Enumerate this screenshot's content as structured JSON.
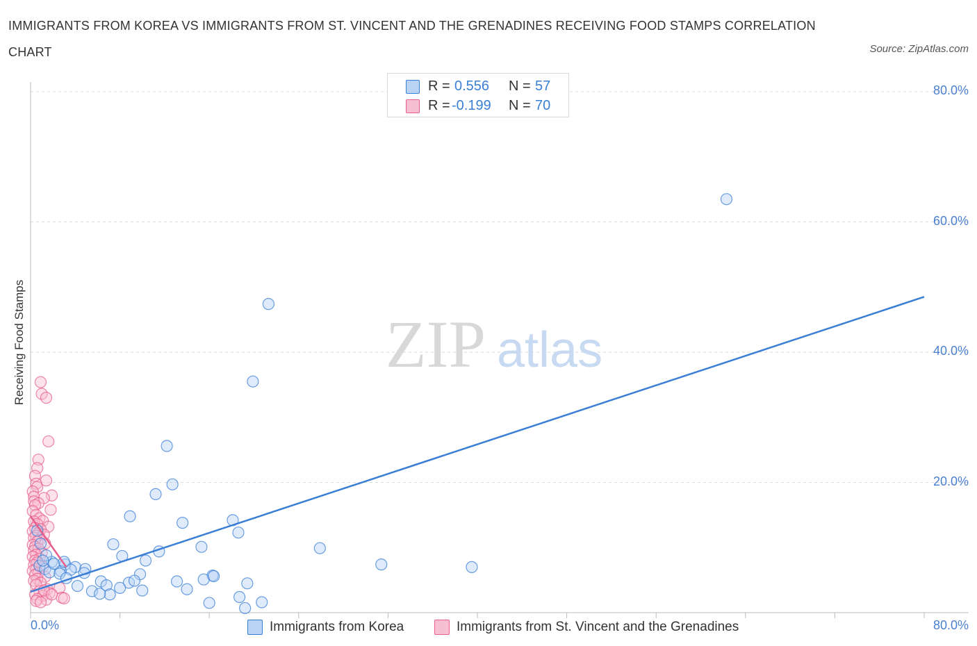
{
  "title": "IMMIGRANTS FROM KOREA VS IMMIGRANTS FROM ST. VINCENT AND THE GRENADINES RECEIVING FOOD STAMPS CORRELATION CHART",
  "source": "Source: ZipAtlas.com",
  "watermark": {
    "zip": "ZIP",
    "atlas": "atlas"
  },
  "colors": {
    "blue": "#3a7fd5",
    "blue_fill": "#b9d3f5",
    "pink": "#e85f8c",
    "pink_fill": "#f8bfd2",
    "axis_text": "#4a7fd0",
    "grid": "#d8d8d8"
  },
  "legend": {
    "rows": [
      {
        "r_label": "R =",
        "r_value": "0.556",
        "n_label": "N =",
        "n_value": "57"
      },
      {
        "r_label": "R =",
        "r_value": "-0.199",
        "n_label": "N =",
        "n_value": "70"
      }
    ]
  },
  "chart_data": {
    "type": "scatter",
    "title": "IMMIGRANTS FROM KOREA VS IMMIGRANTS FROM ST. VINCENT AND THE GRENADINES RECEIVING FOOD STAMPS CORRELATION CHART",
    "xlabel": "",
    "ylabel": "Receiving Food Stamps",
    "xlim": [
      0,
      80
    ],
    "ylim": [
      0,
      80
    ],
    "x_tick_labels": {
      "left": "0.0%",
      "right": "80.0%"
    },
    "y_tick_labels": [
      "20.0%",
      "40.0%",
      "60.0%",
      "80.0%"
    ],
    "y_ticks": [
      20,
      40,
      60,
      80
    ],
    "grid": true,
    "series": [
      {
        "name": "Immigrants from Korea",
        "color": "#3a7fd5",
        "trend": {
          "x": [
            0,
            80
          ],
          "y": [
            3.2,
            48.5
          ]
        },
        "points": [
          [
            62.3,
            63.5
          ],
          [
            21.3,
            47.4
          ],
          [
            19.9,
            35.5
          ],
          [
            12.2,
            25.6
          ],
          [
            12.7,
            19.7
          ],
          [
            11.2,
            18.2
          ],
          [
            8.9,
            14.8
          ],
          [
            13.6,
            13.8
          ],
          [
            18.1,
            14.2
          ],
          [
            18.6,
            12.3
          ],
          [
            7.4,
            10.5
          ],
          [
            15.3,
            10.1
          ],
          [
            25.9,
            9.9
          ],
          [
            11.5,
            9.4
          ],
          [
            8.2,
            8.7
          ],
          [
            10.3,
            8.0
          ],
          [
            31.4,
            7.4
          ],
          [
            39.5,
            7.0
          ],
          [
            1.9,
            7.8
          ],
          [
            3.1,
            7.4
          ],
          [
            0.8,
            7.2
          ],
          [
            1.3,
            6.7
          ],
          [
            4.0,
            7.0
          ],
          [
            3.6,
            6.6
          ],
          [
            2.7,
            6.4
          ],
          [
            4.9,
            6.7
          ],
          [
            1.7,
            6.2
          ],
          [
            2.6,
            6.0
          ],
          [
            4.8,
            6.1
          ],
          [
            9.8,
            5.9
          ],
          [
            16.3,
            5.7
          ],
          [
            16.4,
            5.6
          ],
          [
            15.5,
            5.1
          ],
          [
            3.2,
            5.3
          ],
          [
            6.3,
            4.8
          ],
          [
            8.8,
            4.6
          ],
          [
            13.1,
            4.8
          ],
          [
            9.3,
            4.9
          ],
          [
            19.4,
            4.5
          ],
          [
            6.8,
            4.2
          ],
          [
            4.2,
            4.1
          ],
          [
            14.0,
            3.6
          ],
          [
            8.0,
            3.8
          ],
          [
            10.0,
            3.4
          ],
          [
            5.5,
            3.3
          ],
          [
            7.1,
            2.8
          ],
          [
            6.2,
            2.9
          ],
          [
            18.7,
            2.4
          ],
          [
            16.0,
            1.5
          ],
          [
            20.7,
            1.6
          ],
          [
            19.2,
            0.7
          ],
          [
            1.4,
            8.8
          ],
          [
            2.1,
            7.5
          ],
          [
            1.1,
            8.0
          ],
          [
            3.0,
            7.8
          ],
          [
            0.6,
            12.6
          ],
          [
            0.9,
            10.6
          ]
        ]
      },
      {
        "name": "Immigrants from St. Vincent and the Grenadines",
        "color": "#e85f8c",
        "trend": {
          "x": [
            0,
            3.2
          ],
          "y": [
            14.8,
            7.0
          ]
        },
        "points": [
          [
            0.9,
            35.4
          ],
          [
            1.0,
            33.6
          ],
          [
            1.4,
            33.0
          ],
          [
            1.6,
            26.3
          ],
          [
            0.7,
            23.5
          ],
          [
            0.6,
            22.2
          ],
          [
            0.4,
            21.0
          ],
          [
            1.4,
            20.3
          ],
          [
            0.5,
            19.8
          ],
          [
            0.6,
            19.3
          ],
          [
            0.2,
            18.6
          ],
          [
            1.9,
            18.0
          ],
          [
            0.3,
            17.8
          ],
          [
            1.2,
            17.6
          ],
          [
            0.3,
            17.1
          ],
          [
            0.7,
            16.8
          ],
          [
            0.4,
            16.5
          ],
          [
            1.8,
            15.8
          ],
          [
            0.2,
            15.6
          ],
          [
            0.5,
            15.0
          ],
          [
            0.8,
            14.5
          ],
          [
            1.1,
            14.1
          ],
          [
            0.3,
            14.0
          ],
          [
            0.6,
            13.6
          ],
          [
            1.6,
            13.2
          ],
          [
            0.4,
            13.0
          ],
          [
            0.9,
            12.8
          ],
          [
            0.2,
            12.5
          ],
          [
            0.7,
            12.2
          ],
          [
            1.2,
            12.0
          ],
          [
            0.5,
            11.8
          ],
          [
            0.3,
            11.5
          ],
          [
            0.8,
            11.2
          ],
          [
            0.6,
            10.9
          ],
          [
            1.3,
            10.6
          ],
          [
            0.2,
            10.4
          ],
          [
            0.4,
            10.1
          ],
          [
            0.7,
            9.8
          ],
          [
            0.3,
            9.5
          ],
          [
            1.0,
            9.2
          ],
          [
            0.5,
            8.9
          ],
          [
            0.2,
            8.6
          ],
          [
            0.8,
            8.3
          ],
          [
            0.4,
            8.0
          ],
          [
            0.6,
            7.7
          ],
          [
            0.3,
            7.3
          ],
          [
            1.1,
            7.0
          ],
          [
            0.5,
            6.7
          ],
          [
            0.2,
            6.4
          ],
          [
            0.7,
            6.1
          ],
          [
            0.4,
            5.8
          ],
          [
            1.3,
            5.5
          ],
          [
            0.6,
            5.2
          ],
          [
            0.3,
            4.9
          ],
          [
            0.9,
            4.6
          ],
          [
            0.5,
            4.3
          ],
          [
            2.6,
            3.8
          ],
          [
            1.5,
            3.6
          ],
          [
            0.8,
            3.3
          ],
          [
            1.7,
            3.0
          ],
          [
            0.4,
            2.8
          ],
          [
            1.1,
            2.6
          ],
          [
            2.8,
            2.3
          ],
          [
            0.6,
            2.1
          ],
          [
            1.4,
            2.0
          ],
          [
            3.0,
            2.2
          ],
          [
            0.5,
            1.8
          ],
          [
            0.9,
            1.6
          ],
          [
            1.2,
            3.4
          ],
          [
            1.9,
            2.8
          ]
        ]
      }
    ]
  },
  "bottom_legend": {
    "korea": "Immigrants from Korea",
    "svg": "Immigrants from St. Vincent and the Grenadines"
  }
}
